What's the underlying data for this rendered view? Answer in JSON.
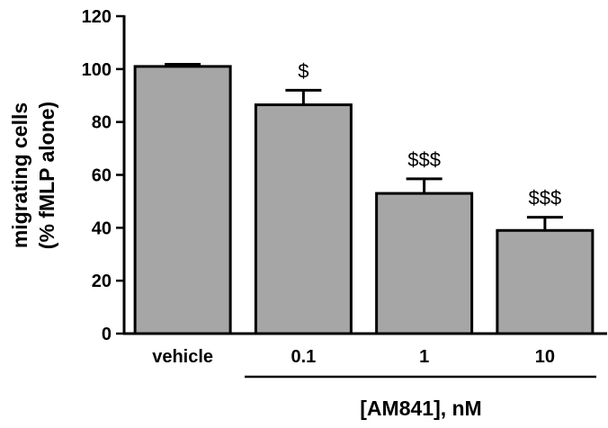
{
  "chart_data": {
    "type": "bar",
    "categories": [
      "vehicle",
      "0.1",
      "1",
      "10"
    ],
    "values": [
      101,
      86.5,
      53,
      39
    ],
    "errors": [
      0.8,
      5.5,
      5.5,
      5
    ],
    "annotations": [
      "",
      "$",
      "$$$",
      "$$$"
    ],
    "ylabel_lines": [
      "migrating cells",
      "(% fMLP alone)"
    ],
    "group_label": "[AM841], nM",
    "ylim": [
      0,
      120
    ],
    "yticks": [
      "0",
      "20",
      "40",
      "60",
      "80",
      "100",
      "120"
    ],
    "bar_color": "#a6a6a6",
    "grid": false
  }
}
